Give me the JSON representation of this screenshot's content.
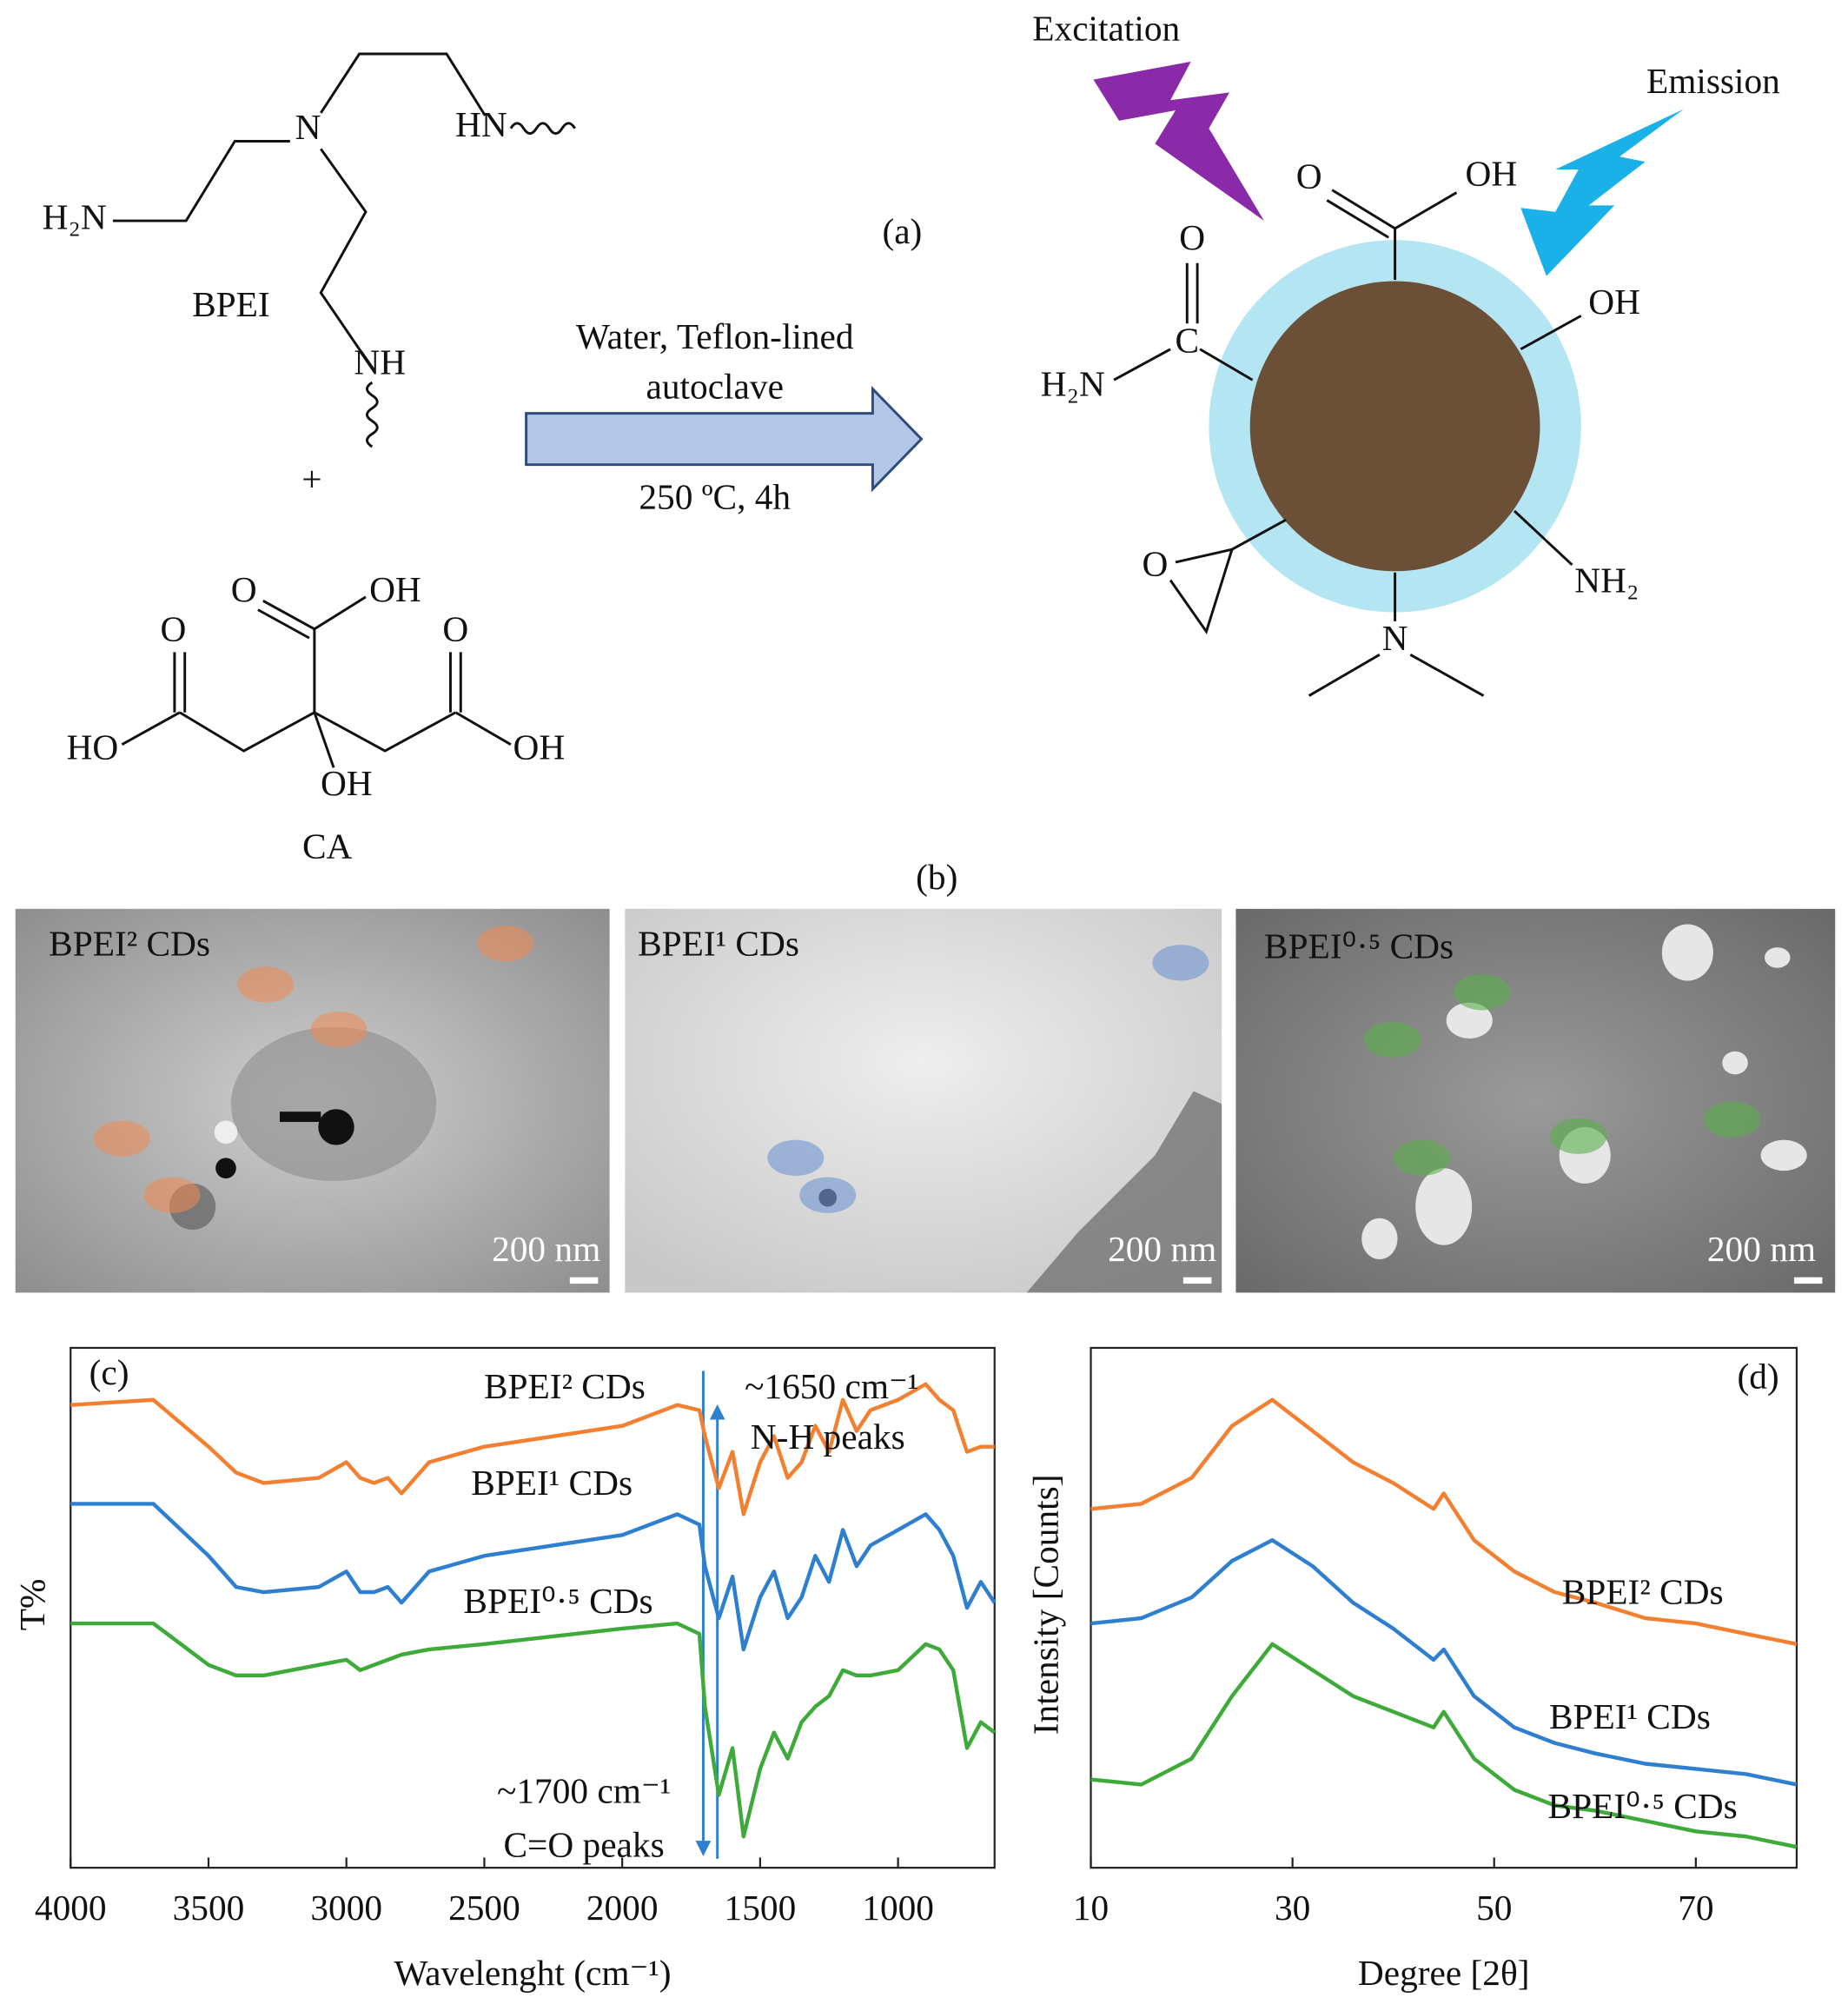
{
  "scheme": {
    "label": "(a)",
    "bpei": {
      "name": "BPEI",
      "h2n": "H₂N",
      "n": "N",
      "hn": "HN",
      "nh": "NH"
    },
    "plus": "+",
    "ca": {
      "name": "CA",
      "o1": "O",
      "oh1": "OH",
      "o2": "O",
      "ho": "HO",
      "o3": "O",
      "oh2": "OH",
      "oh3": "OH"
    },
    "conditions": [
      "Water, Teflon-lined",
      "autoclave",
      "250 ºC, 4h"
    ],
    "excitation": "Excitation",
    "emission": "Emission",
    "dot": {
      "o_top": "O",
      "oh_top": "OH",
      "oh_right": "OH",
      "o_amide": "O",
      "c_amide": "C",
      "h2n": "H₂N",
      "nh2": "NH₂",
      "n": "N",
      "o_epoxide": "O"
    }
  },
  "tem": {
    "label": "(b)",
    "panels": [
      {
        "label": "BPEI² CDs",
        "scale": "200 nm"
      },
      {
        "label": "BPEI¹ CDs",
        "scale": "200 nm"
      },
      {
        "label": "BPEI⁰·⁵ CDs",
        "scale": "200 nm"
      }
    ]
  },
  "chart_data": [
    {
      "type": "line",
      "label": "(c)",
      "y_label": "T%",
      "x_label": "Wavelenght (cm⁻¹)",
      "xlim": [
        4000,
        650
      ],
      "xticks": [
        4000,
        3500,
        3000,
        2500,
        2000,
        1500,
        1000
      ],
      "ylim": [
        0,
        100
      ],
      "x": [
        4000,
        3700,
        3500,
        3400,
        3300,
        3100,
        3000,
        2950,
        2900,
        2850,
        2800,
        2700,
        2500,
        2000,
        1800,
        1720,
        1700,
        1650,
        1600,
        1560,
        1500,
        1450,
        1400,
        1350,
        1300,
        1250,
        1200,
        1150,
        1100,
        1000,
        900,
        850,
        800,
        750,
        700,
        650
      ],
      "series": [
        {
          "name": "BPEI² CDs",
          "color": "#f28030",
          "values": [
            89,
            90,
            81,
            76,
            74,
            75,
            78,
            75,
            74,
            75,
            72,
            78,
            81,
            85,
            89,
            88,
            83,
            73,
            80,
            68,
            78,
            83,
            75,
            78,
            85,
            80,
            90,
            84,
            88,
            90,
            93,
            90,
            88,
            80,
            81,
            81
          ]
        },
        {
          "name": "BPEI¹ CDs",
          "color": "#2f7fd0",
          "values": [
            70,
            70,
            60,
            54,
            53,
            54,
            57,
            53,
            53,
            54,
            51,
            57,
            60,
            64,
            68,
            66,
            58,
            48,
            56,
            42,
            52,
            57,
            48,
            52,
            60,
            55,
            65,
            58,
            62,
            65,
            68,
            65,
            60,
            50,
            55,
            51
          ]
        },
        {
          "name": "BPEI⁰·⁵ CDs",
          "color": "#3daa3a",
          "values": [
            47,
            47,
            39,
            37,
            37,
            39,
            40,
            38,
            39,
            40,
            41,
            42,
            43,
            46,
            47,
            45,
            31,
            14,
            23,
            6,
            19,
            26,
            21,
            28,
            31,
            33,
            38,
            37,
            37,
            38,
            43,
            42,
            38,
            23,
            28,
            26
          ]
        }
      ],
      "annotations": [
        "~1650 cm⁻¹",
        "N-H peaks",
        "~1700 cm⁻¹",
        "C=O peaks"
      ]
    },
    {
      "type": "line",
      "label": "(d)",
      "y_label": "Intensity [Counts]",
      "x_label": "Degree [2θ]",
      "xlim": [
        10,
        80
      ],
      "xticks": [
        10,
        30,
        50,
        70
      ],
      "ylim": [
        0,
        100
      ],
      "x": [
        10,
        15,
        20,
        24,
        28,
        32,
        36,
        40,
        44,
        45,
        48,
        52,
        56,
        60,
        65,
        70,
        75,
        80
      ],
      "series": [
        {
          "name": "BPEI² CDs",
          "color": "#f28030",
          "values": [
            69,
            70,
            75,
            85,
            90,
            84,
            78,
            74,
            69,
            72,
            63,
            57,
            53,
            51,
            48,
            47,
            45,
            43
          ]
        },
        {
          "name": "BPEI¹ CDs",
          "color": "#2f7fd0",
          "values": [
            47,
            48,
            52,
            59,
            63,
            58,
            51,
            46,
            40,
            42,
            33,
            27,
            24,
            22,
            20,
            19,
            18,
            16
          ]
        },
        {
          "name": "BPEI⁰·⁵ CDs",
          "color": "#3daa3a",
          "values": [
            17,
            16,
            21,
            33,
            43,
            38,
            33,
            30,
            27,
            30,
            21,
            15,
            12,
            11,
            9,
            7,
            6,
            4
          ]
        }
      ]
    }
  ]
}
